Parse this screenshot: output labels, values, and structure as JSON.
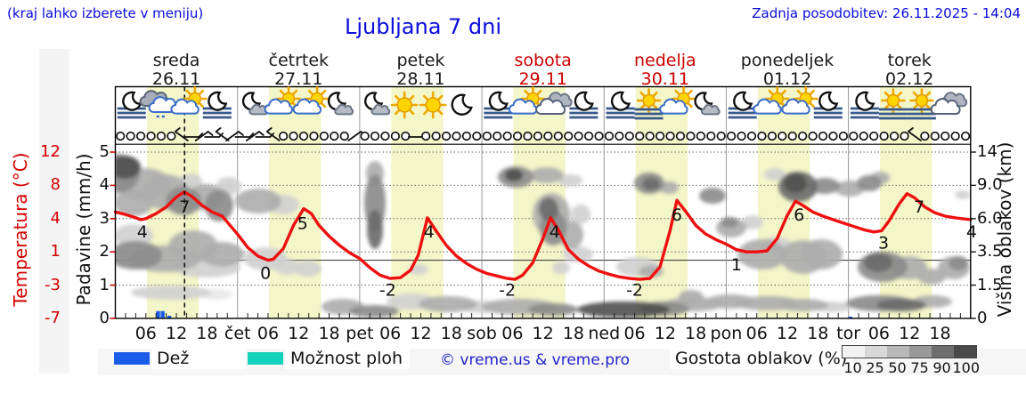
{
  "header": {
    "menu_hint": "(kraj lahko izberete v meniju)",
    "title": "Ljubljana 7 dni",
    "last_update": "Zadnja posodobitev: 26.11.2025 - 14:04"
  },
  "colors": {
    "accent_blue": "#0b0bdd",
    "temp_red": "#d40000",
    "curve_red": "#ee1010",
    "weekend_red": "#cc0000",
    "day_band_yellow": "#f3f6c8",
    "rain_blue": "#1a5ce8",
    "shower_teal": "#14d2bc",
    "grid_gray": "#999999",
    "fog_blue": "#39598c",
    "cloud_grays": {
      "10": "#e8e8e8",
      "25": "#d0d0d0",
      "50": "#aeaeae",
      "75": "#8c8c8c",
      "90": "#6b6b6b",
      "100": "#515151"
    }
  },
  "left_axis_temp": {
    "label": "Temperatura (°C)",
    "ticks": [
      "12",
      "8",
      "4",
      "1",
      "-3",
      "-7"
    ]
  },
  "left_axis_precip": {
    "label": "Padavine (mm/h)",
    "ticks": [
      "5",
      "4",
      "3",
      "2",
      "1",
      "0"
    ]
  },
  "right_axis": {
    "label": "Višina oblakov (km)",
    "ticks": [
      "14",
      "9.0",
      "6.0",
      "3.5",
      "1.5",
      "0"
    ]
  },
  "x_hour_labels": [
    "06",
    "12",
    "18"
  ],
  "day_abbrs": [
    "čet",
    "pet",
    "sob",
    "ned",
    "pon",
    "tor"
  ],
  "days": [
    {
      "name": "sreda",
      "date": "26.11",
      "weekend": false,
      "icons": [
        "moon-fog",
        "clouds-mist",
        "sun-cloud",
        "moon-fog"
      ],
      "wind": [
        "o",
        "o",
        "o",
        "o",
        "o",
        "o",
        "b3",
        "b2",
        "b1",
        "b2",
        "b3",
        "b1"
      ]
    },
    {
      "name": "četrtek",
      "date": "27.11",
      "weekend": false,
      "icons": [
        "moon-cloud",
        "sun-cloud",
        "sun-cloud",
        "moon-cloud"
      ],
      "wind": [
        "b2",
        "b1",
        "b2",
        "b3",
        "o",
        "o",
        "o",
        "o",
        "o",
        "o",
        "o",
        "b1"
      ]
    },
    {
      "name": "petek",
      "date": "28.11",
      "weekend": false,
      "icons": [
        "moon-cloud",
        "sun",
        "sun",
        "moon"
      ],
      "wind": [
        "o",
        "o",
        "o",
        "o",
        "o",
        "b2",
        "o",
        "o",
        "o",
        "o",
        "o",
        "o"
      ]
    },
    {
      "name": "sobota",
      "date": "29.11",
      "weekend": true,
      "icons": [
        "moon-fog",
        "sun-cloud",
        "clouds",
        "moon-fog"
      ],
      "wind": [
        "o",
        "o",
        "o",
        "o",
        "o",
        "o",
        "o",
        "o",
        "o",
        "o",
        "o",
        "o"
      ]
    },
    {
      "name": "nedelja",
      "date": "30.11",
      "weekend": true,
      "icons": [
        "moon-fog",
        "sun-fog",
        "sun-cloud",
        "moon-cloud"
      ],
      "wind": [
        "o",
        "o",
        "o",
        "o",
        "o",
        "o",
        "o",
        "o",
        "o",
        "o",
        "o",
        "o"
      ]
    },
    {
      "name": "ponedeljek",
      "date": "01.12",
      "weekend": false,
      "icons": [
        "moon-fog",
        "sun-cloud",
        "sun-cloud",
        "moon-fog"
      ],
      "wind": [
        "o",
        "o",
        "o",
        "o",
        "o",
        "o",
        "o",
        "o",
        "o",
        "o",
        "o",
        "o"
      ]
    },
    {
      "name": "torek",
      "date": "02.12",
      "weekend": false,
      "icons": [
        "moon-fog",
        "sun-fog",
        "sun-fog",
        "clouds"
      ],
      "wind": [
        "o",
        "o",
        "o",
        "o",
        "o",
        "o",
        "b3",
        "o",
        "o",
        "o",
        "o",
        "o"
      ]
    }
  ],
  "legend": {
    "rain_label": "Dež",
    "shower_label": "Možnost ploh",
    "copyright": "© vreme.us & vreme.pro",
    "cloud_label": "Gostota oblakov (%)",
    "cloud_scale": [
      "10",
      "25",
      "50",
      "75",
      "90",
      "100"
    ]
  },
  "chart_data": {
    "type": "line",
    "title": "Ljubljana 7 dni",
    "x_unit": "hours from 26.11.2025 00:00",
    "now_hour": 13.6,
    "daylight_hours": [
      6.2,
      16.4
    ],
    "temp_axis_ticks": [
      12,
      8,
      4,
      1,
      -3,
      -7
    ],
    "precip_axis_ticks": [
      5,
      4,
      3,
      2,
      1,
      0
    ],
    "cloud_height_axis_ticks": [
      14,
      9.0,
      6.0,
      3.5,
      1.5,
      0
    ],
    "temperature": [
      [
        0,
        4.8
      ],
      [
        2,
        4.5
      ],
      [
        4,
        4.1
      ],
      [
        5,
        3.9
      ],
      [
        6,
        4.0
      ],
      [
        8,
        4.6
      ],
      [
        10,
        5.4
      ],
      [
        12,
        6.6
      ],
      [
        13.5,
        7.2
      ],
      [
        15,
        6.7
      ],
      [
        17,
        5.6
      ],
      [
        19,
        4.8
      ],
      [
        21,
        4.3
      ],
      [
        24,
        2.6
      ],
      [
        26,
        1.4
      ],
      [
        28,
        0.5
      ],
      [
        30,
        0.0
      ],
      [
        31,
        0.1
      ],
      [
        33,
        1.3
      ],
      [
        35,
        3.4
      ],
      [
        37,
        5.2
      ],
      [
        38.5,
        4.6
      ],
      [
        40,
        3.4
      ],
      [
        42,
        2.4
      ],
      [
        44,
        1.6
      ],
      [
        46,
        0.9
      ],
      [
        48,
        0.2
      ],
      [
        50,
        -0.9
      ],
      [
        52,
        -1.8
      ],
      [
        54,
        -2.2
      ],
      [
        56,
        -2.1
      ],
      [
        58,
        -1.2
      ],
      [
        59.5,
        0.6
      ],
      [
        61.3,
        4.1
      ],
      [
        63,
        2.9
      ],
      [
        65,
        1.6
      ],
      [
        67,
        0.5
      ],
      [
        69,
        -0.4
      ],
      [
        71,
        -1.1
      ],
      [
        73,
        -1.6
      ],
      [
        75,
        -1.9
      ],
      [
        77,
        -2.2
      ],
      [
        78.5,
        -2.3
      ],
      [
        80,
        -1.8
      ],
      [
        82,
        -0.3
      ],
      [
        84,
        2.2
      ],
      [
        85.5,
        4.1
      ],
      [
        87,
        3.0
      ],
      [
        89,
        1.2
      ],
      [
        91,
        0.1
      ],
      [
        93,
        -0.7
      ],
      [
        95,
        -1.3
      ],
      [
        97,
        -1.7
      ],
      [
        99,
        -2.0
      ],
      [
        101,
        -2.2
      ],
      [
        103,
        -2.3
      ],
      [
        105,
        -2.2
      ],
      [
        107,
        -0.8
      ],
      [
        109,
        3.0
      ],
      [
        110.3,
        6.2
      ],
      [
        112,
        4.9
      ],
      [
        114,
        3.4
      ],
      [
        116,
        2.6
      ],
      [
        118,
        2.1
      ],
      [
        120,
        1.7
      ],
      [
        122,
        1.2
      ],
      [
        124,
        1.0
      ],
      [
        126,
        1.0
      ],
      [
        128,
        1.1
      ],
      [
        130,
        2.2
      ],
      [
        132,
        4.4
      ],
      [
        133.6,
        6.1
      ],
      [
        135,
        5.6
      ],
      [
        137,
        4.8
      ],
      [
        139,
        4.3
      ],
      [
        141,
        3.9
      ],
      [
        143,
        3.6
      ],
      [
        145,
        3.3
      ],
      [
        147,
        3.0
      ],
      [
        149,
        2.8
      ],
      [
        150.5,
        2.9
      ],
      [
        152,
        3.8
      ],
      [
        154,
        5.8
      ],
      [
        155.5,
        7.0
      ],
      [
        157,
        6.5
      ],
      [
        159,
        5.4
      ],
      [
        161,
        4.7
      ],
      [
        163,
        4.3
      ],
      [
        165,
        4.1
      ],
      [
        168,
        3.9
      ]
    ],
    "temp_labels": [
      {
        "h": 5.3,
        "v": 4
      },
      {
        "h": 13.6,
        "v": 7
      },
      {
        "h": 29.5,
        "v": 0
      },
      {
        "h": 36.8,
        "v": 5
      },
      {
        "h": 53.5,
        "v": -2
      },
      {
        "h": 61.6,
        "v": 4
      },
      {
        "h": 77,
        "v": -2
      },
      {
        "h": 86.3,
        "v": 4
      },
      {
        "h": 102,
        "v": -2
      },
      {
        "h": 110.3,
        "v": 6
      },
      {
        "h": 122,
        "v": 1
      },
      {
        "h": 134.3,
        "v": 6
      },
      {
        "h": 150.9,
        "v": 3
      },
      {
        "h": 157.9,
        "v": 7
      },
      {
        "h": 168.2,
        "v": 4
      }
    ],
    "precip_bars": [
      {
        "h": 8.4,
        "v": 0.22
      },
      {
        "h": 9.3,
        "v": 0.22
      },
      {
        "h": 10.6,
        "v": 0.08
      },
      {
        "h": 144.4,
        "v": 0.05
      }
    ],
    "cloud_blobs": [
      [
        131,
        195,
        26,
        22,
        75
      ],
      [
        140,
        188,
        18,
        13,
        100
      ],
      [
        162,
        207,
        30,
        18,
        50
      ],
      [
        150,
        228,
        22,
        15,
        50
      ],
      [
        186,
        216,
        26,
        20,
        50
      ],
      [
        206,
        226,
        20,
        16,
        75
      ],
      [
        214,
        204,
        13,
        9,
        25
      ],
      [
        231,
        222,
        20,
        15,
        50
      ],
      [
        246,
        231,
        16,
        18,
        75
      ],
      [
        257,
        209,
        14,
        10,
        25
      ],
      [
        290,
        226,
        26,
        14,
        50
      ],
      [
        318,
        230,
        18,
        11,
        25
      ],
      [
        150,
        265,
        22,
        13,
        25
      ],
      [
        152,
        287,
        30,
        16,
        75
      ],
      [
        185,
        291,
        40,
        15,
        50
      ],
      [
        217,
        277,
        28,
        18,
        50
      ],
      [
        250,
        286,
        24,
        14,
        50
      ],
      [
        232,
        301,
        38,
        11,
        25
      ],
      [
        298,
        291,
        24,
        13,
        25
      ],
      [
        322,
        300,
        14,
        9,
        25
      ],
      [
        192,
        329,
        45,
        8,
        25
      ],
      [
        243,
        331,
        18,
        6,
        10
      ],
      [
        421,
        195,
        10,
        14,
        50
      ],
      [
        421,
        228,
        12,
        32,
        75
      ],
      [
        421,
        258,
        9,
        22,
        90
      ],
      [
        345,
        302,
        16,
        9,
        25
      ],
      [
        385,
        345,
        24,
        9,
        50
      ],
      [
        420,
        350,
        28,
        7,
        75
      ],
      [
        462,
        339,
        28,
        9,
        25
      ],
      [
        503,
        342,
        33,
        9,
        50
      ],
      [
        541,
        345,
        24,
        7,
        25
      ],
      [
        470,
        303,
        11,
        6,
        25
      ],
      [
        579,
        199,
        20,
        12,
        75
      ],
      [
        577,
        197,
        10,
        7,
        100
      ],
      [
        614,
        197,
        19,
        9,
        50
      ],
      [
        640,
        203,
        14,
        7,
        25
      ],
      [
        619,
        241,
        21,
        24,
        50
      ],
      [
        621,
        256,
        15,
        20,
        75
      ],
      [
        616,
        235,
        11,
        13,
        90
      ],
      [
        641,
        264,
        14,
        16,
        50
      ],
      [
        652,
        241,
        11,
        11,
        25
      ],
      [
        649,
        286,
        17,
        9,
        25
      ],
      [
        630,
        301,
        10,
        7,
        25
      ],
      [
        583,
        345,
        42,
        9,
        50
      ],
      [
        621,
        348,
        28,
        7,
        75
      ],
      [
        700,
        348,
        52,
        9,
        100
      ],
      [
        746,
        347,
        28,
        8,
        75
      ],
      [
        779,
        342,
        33,
        8,
        50
      ],
      [
        820,
        339,
        28,
        8,
        50
      ],
      [
        862,
        341,
        38,
        8,
        50
      ],
      [
        902,
        343,
        28,
        7,
        50
      ],
      [
        934,
        345,
        22,
        6,
        25
      ],
      [
        729,
        206,
        17,
        12,
        75
      ],
      [
        731,
        207,
        10,
        7,
        90
      ],
      [
        751,
        211,
        11,
        7,
        50
      ],
      [
        716,
        300,
        24,
        11,
        25
      ],
      [
        731,
        305,
        14,
        7,
        50
      ],
      [
        776,
        334,
        14,
        8,
        50
      ],
      [
        800,
        220,
        15,
        9,
        75
      ],
      [
        821,
        256,
        17,
        11,
        50
      ],
      [
        819,
        250,
        10,
        6,
        75
      ],
      [
        856,
        286,
        28,
        17,
        50
      ],
      [
        872,
        277,
        18,
        11,
        25
      ],
      [
        902,
        289,
        26,
        19,
        50
      ],
      [
        922,
        286,
        24,
        17,
        50
      ],
      [
        845,
        250,
        12,
        8,
        25
      ],
      [
        870,
        196,
        12,
        7,
        25
      ],
      [
        896,
        210,
        22,
        17,
        90
      ],
      [
        893,
        206,
        13,
        11,
        100
      ],
      [
        926,
        209,
        17,
        9,
        75
      ],
      [
        954,
        212,
        17,
        9,
        50
      ],
      [
        976,
        206,
        14,
        9,
        75
      ],
      [
        988,
        200,
        11,
        7,
        50
      ],
      [
        991,
        300,
        28,
        17,
        75
      ],
      [
        986,
        295,
        16,
        11,
        90
      ],
      [
        1021,
        301,
        20,
        13,
        50
      ],
      [
        1046,
        311,
        16,
        9,
        50
      ],
      [
        988,
        341,
        38,
        9,
        75
      ],
      [
        1012,
        343,
        28,
        7,
        90
      ],
      [
        1047,
        339,
        22,
        7,
        50
      ],
      [
        1071,
        301,
        18,
        13,
        50
      ],
      [
        1076,
        296,
        11,
        8,
        75
      ],
      [
        1081,
        219,
        9,
        5,
        25
      ]
    ]
  }
}
